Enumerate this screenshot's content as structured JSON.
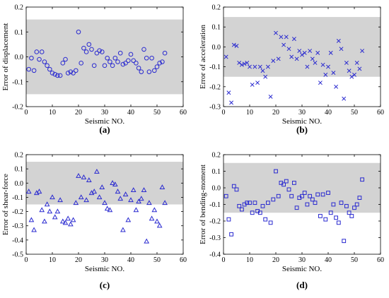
{
  "chart_data": [
    {
      "type": "scatter",
      "panel_label": "(a)",
      "xlabel": "Seismic NO.",
      "ylabel": "Error of displacement",
      "xlim": [
        0,
        60
      ],
      "ylim": [
        -0.2,
        0.2
      ],
      "xticks": [
        "0",
        "10",
        "20",
        "30",
        "40",
        "50",
        "60"
      ],
      "yticks": [
        "-0.2",
        "-0.1",
        "0.0",
        "0.1",
        "0.2"
      ],
      "band": [
        -0.15,
        0.15
      ],
      "marker": "circle",
      "color": "#2a2ad0",
      "band_color": "#d3d3d3",
      "x": [
        1,
        2,
        3,
        4,
        5,
        6,
        7,
        8,
        9,
        10,
        11,
        12,
        13,
        14,
        15,
        16,
        17,
        18,
        19,
        20,
        21,
        22,
        23,
        24,
        25,
        26,
        27,
        28,
        29,
        30,
        31,
        32,
        33,
        34,
        35,
        36,
        37,
        38,
        39,
        40,
        41,
        42,
        43,
        44,
        45,
        46,
        47,
        48,
        49,
        50,
        51,
        52,
        53
      ],
      "y": [
        -0.05,
        -0.005,
        -0.055,
        0.02,
        -0.01,
        0.02,
        -0.02,
        -0.035,
        -0.05,
        -0.065,
        -0.07,
        -0.075,
        -0.075,
        -0.025,
        -0.01,
        -0.065,
        -0.06,
        -0.065,
        -0.055,
        0.1,
        -0.025,
        0.035,
        0.02,
        0.05,
        0.03,
        -0.035,
        0.015,
        0.025,
        0.02,
        -0.035,
        -0.005,
        -0.02,
        -0.035,
        -0.005,
        -0.02,
        0.015,
        -0.03,
        -0.025,
        -0.015,
        0.01,
        -0.015,
        -0.025,
        -0.045,
        -0.06,
        0.03,
        -0.005,
        -0.06,
        -0.005,
        -0.055,
        -0.04,
        -0.025,
        -0.02,
        0.015
      ]
    },
    {
      "type": "scatter",
      "panel_label": "(b)",
      "xlabel": "Seismic NO.",
      "ylabel": "Error of acceleration",
      "xlim": [
        0,
        60
      ],
      "ylim": [
        -0.3,
        0.2
      ],
      "xticks": [
        "0",
        "10",
        "20",
        "30",
        "40",
        "50",
        "60"
      ],
      "yticks": [
        "-0.3",
        "-0.2",
        "-0.1",
        "0.0",
        "0.1",
        "0.2"
      ],
      "band": [
        -0.15,
        0.15
      ],
      "marker": "x",
      "color": "#2a2ad0",
      "band_color": "#d3d3d3",
      "x": [
        1,
        2,
        3,
        4,
        5,
        6,
        7,
        8,
        9,
        10,
        11,
        12,
        13,
        14,
        15,
        16,
        17,
        18,
        19,
        20,
        21,
        22,
        23,
        24,
        25,
        26,
        27,
        28,
        29,
        30,
        31,
        32,
        33,
        34,
        35,
        36,
        37,
        38,
        39,
        40,
        41,
        42,
        43,
        44,
        45,
        46,
        47,
        48,
        49,
        50,
        51,
        52,
        53
      ],
      "y": [
        -0.05,
        -0.23,
        -0.28,
        0.01,
        0.005,
        -0.08,
        -0.09,
        -0.085,
        -0.08,
        -0.1,
        -0.19,
        -0.1,
        -0.18,
        -0.1,
        -0.12,
        -0.15,
        -0.1,
        -0.25,
        -0.07,
        0.07,
        -0.06,
        0.05,
        0.01,
        0.05,
        -0.01,
        -0.05,
        0.04,
        -0.06,
        -0.02,
        -0.04,
        -0.03,
        -0.1,
        -0.02,
        -0.06,
        -0.08,
        -0.03,
        -0.18,
        -0.09,
        -0.14,
        -0.1,
        -0.03,
        -0.13,
        -0.2,
        0.03,
        -0.01,
        -0.26,
        -0.08,
        -0.12,
        -0.15,
        -0.14,
        -0.08,
        -0.11,
        -0.02
      ]
    },
    {
      "type": "scatter",
      "panel_label": "(c)",
      "xlabel": "Seismic NO.",
      "ylabel": "Error of shear-force",
      "xlim": [
        0,
        60
      ],
      "ylim": [
        -0.5,
        0.2
      ],
      "xticks": [
        "0",
        "10",
        "20",
        "30",
        "40",
        "50",
        "60"
      ],
      "yticks": [
        "-0.5",
        "-0.4",
        "-0.3",
        "-0.2",
        "-0.1",
        "0.0",
        "0.1",
        "0.2"
      ],
      "band": [
        -0.15,
        0.15
      ],
      "marker": "triangle",
      "color": "#2a2ad0",
      "band_color": "#d3d3d3",
      "x": [
        1,
        2,
        3,
        4,
        5,
        6,
        7,
        8,
        9,
        10,
        11,
        12,
        13,
        14,
        15,
        16,
        17,
        18,
        19,
        20,
        21,
        22,
        23,
        24,
        25,
        26,
        27,
        28,
        29,
        30,
        31,
        32,
        33,
        34,
        35,
        36,
        37,
        38,
        39,
        40,
        41,
        42,
        43,
        44,
        45,
        46,
        47,
        48,
        49,
        50,
        51,
        52,
        53
      ],
      "y": [
        -0.06,
        -0.26,
        -0.33,
        -0.07,
        -0.06,
        -0.19,
        -0.27,
        -0.15,
        -0.2,
        -0.1,
        -0.24,
        -0.2,
        -0.12,
        -0.27,
        -0.28,
        -0.25,
        -0.29,
        -0.26,
        -0.14,
        0.05,
        -0.1,
        0.04,
        -0.12,
        0.02,
        -0.07,
        -0.06,
        0.08,
        -0.1,
        -0.03,
        -0.14,
        -0.18,
        -0.19,
        0.0,
        -0.01,
        -0.06,
        -0.11,
        -0.33,
        -0.08,
        -0.26,
        -0.12,
        -0.05,
        -0.19,
        -0.13,
        -0.11,
        -0.05,
        -0.41,
        -0.14,
        -0.25,
        -0.19,
        -0.27,
        -0.3,
        -0.03,
        -0.14
      ]
    },
    {
      "type": "scatter",
      "panel_label": "(d)",
      "xlabel": "Seismic NO.",
      "ylabel": "Error of bending-moment",
      "xlim": [
        0,
        60
      ],
      "ylim": [
        -0.4,
        0.2
      ],
      "xticks": [
        "0",
        "10",
        "20",
        "30",
        "40",
        "50",
        "60"
      ],
      "yticks": [
        "-0.4",
        "-0.3",
        "-0.2",
        "-0.1",
        "0.0",
        "0.1",
        "0.2"
      ],
      "band": [
        -0.15,
        0.15
      ],
      "marker": "square",
      "color": "#2a2ad0",
      "band_color": "#d3d3d3",
      "x": [
        1,
        2,
        3,
        4,
        5,
        6,
        7,
        8,
        9,
        10,
        11,
        12,
        13,
        14,
        15,
        16,
        17,
        18,
        19,
        20,
        21,
        22,
        23,
        24,
        25,
        26,
        27,
        28,
        29,
        30,
        31,
        32,
        33,
        34,
        35,
        36,
        37,
        38,
        39,
        40,
        41,
        42,
        43,
        44,
        45,
        46,
        47,
        48,
        49,
        50,
        51,
        52,
        53
      ],
      "y": [
        -0.05,
        -0.19,
        -0.28,
        0.01,
        -0.01,
        -0.11,
        -0.13,
        -0.1,
        -0.09,
        -0.09,
        -0.15,
        -0.09,
        -0.14,
        -0.15,
        -0.11,
        -0.19,
        -0.09,
        -0.21,
        -0.07,
        0.1,
        -0.05,
        0.03,
        0.02,
        0.04,
        -0.01,
        -0.05,
        0.03,
        -0.12,
        -0.06,
        -0.05,
        -0.03,
        -0.1,
        -0.05,
        -0.07,
        -0.09,
        -0.04,
        -0.17,
        -0.04,
        -0.19,
        -0.03,
        -0.15,
        -0.1,
        -0.18,
        -0.21,
        -0.09,
        -0.32,
        -0.11,
        -0.15,
        -0.17,
        -0.12,
        -0.1,
        -0.06,
        0.05
      ]
    }
  ]
}
